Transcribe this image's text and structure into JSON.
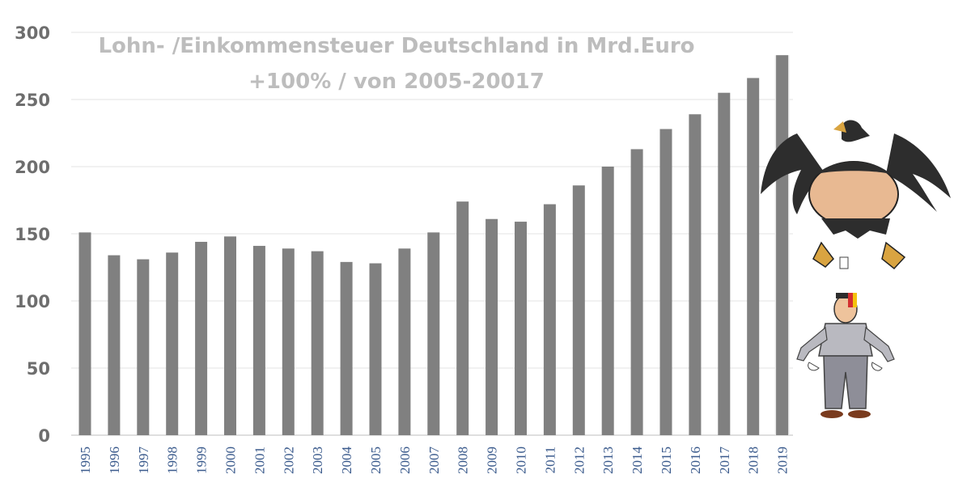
{
  "chart_data": {
    "type": "bar",
    "title": "Lohn- /Einkommensteuer Deutschland in Mrd.Euro",
    "subtitle": "+100% /  von 2005-20017",
    "xlabel": "",
    "ylabel": "",
    "ylim": [
      0,
      300
    ],
    "yticks": [
      0,
      50,
      100,
      150,
      200,
      250,
      300
    ],
    "grid": true,
    "legend": "none",
    "bar_color": "#808080",
    "highlight_color": "#e8e8e8",
    "categories": [
      "1995",
      "1996",
      "1997",
      "1998",
      "1999",
      "2000",
      "2001",
      "2002",
      "2003",
      "2004",
      "2005",
      "2006",
      "2007",
      "2008",
      "2009",
      "2010",
      "2011",
      "2012",
      "2013",
      "2014",
      "2015",
      "2016",
      "2017",
      "2018",
      "2019"
    ],
    "values": [
      151,
      134,
      131,
      136,
      144,
      148,
      141,
      139,
      137,
      129,
      128,
      139,
      151,
      174,
      161,
      159,
      172,
      186,
      200,
      213,
      228,
      239,
      255,
      266,
      283
    ]
  },
  "illustration": {
    "eagle": "cartoon-eagle-icon",
    "man": "cartoon-man-empty-pockets-icon"
  }
}
